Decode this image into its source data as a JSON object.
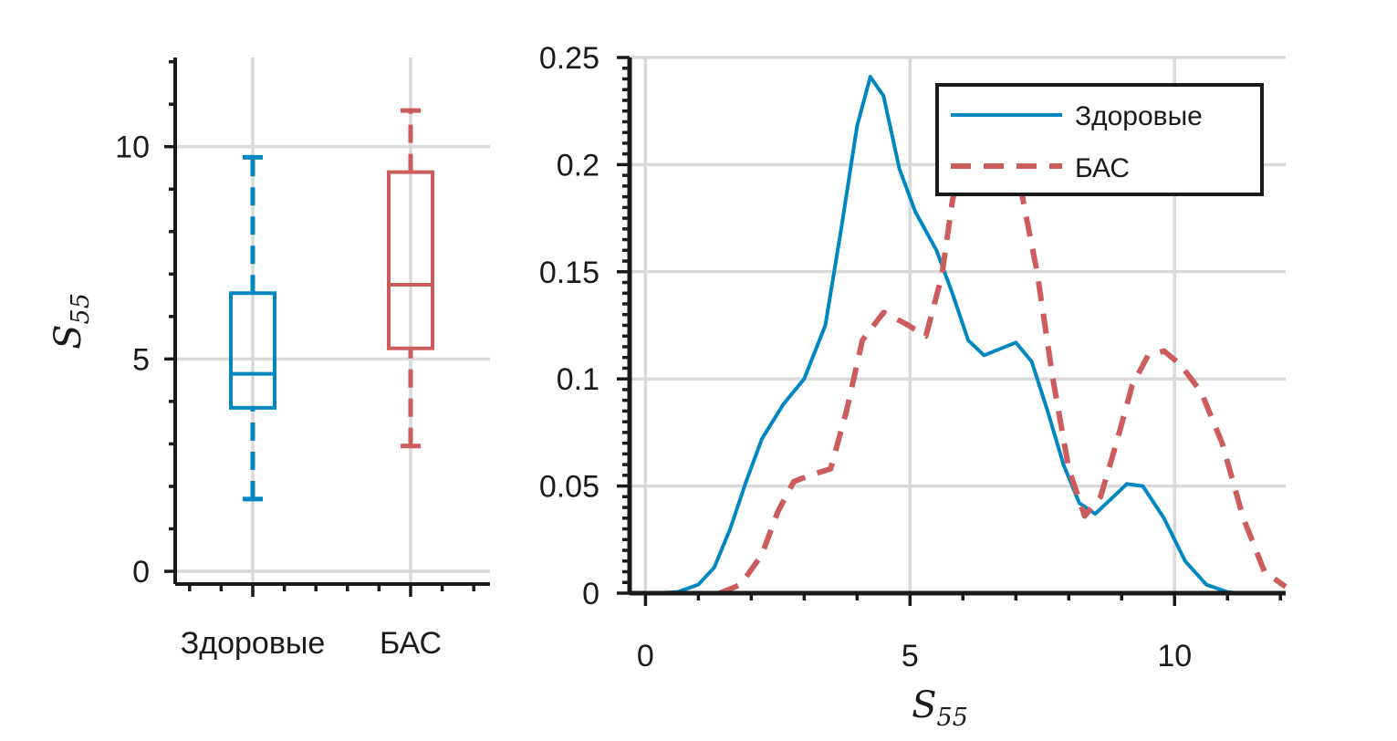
{
  "colors": {
    "healthy": "#0087c2",
    "als": "#cd5c5c",
    "grid": "#d9d9d9",
    "axis": "#1a1a1a"
  },
  "chart_data": [
    {
      "type": "box",
      "categories": [
        "Здоровые",
        "БАС"
      ],
      "ylabel": "S",
      "ylabel_sub": "55",
      "ylim": [
        -0.3,
        12.1
      ],
      "yticks": [
        0,
        5,
        10
      ],
      "ytick_labels": [
        "0",
        "5",
        "10"
      ],
      "grid": true,
      "boxes": [
        {
          "name": "Здоровые",
          "whisker_low": 1.7,
          "q1": 3.85,
          "median": 4.65,
          "q3": 6.55,
          "whisker_high": 9.75
        },
        {
          "name": "БАС",
          "whisker_low": 2.95,
          "q1": 5.25,
          "median": 6.75,
          "q3": 9.4,
          "whisker_high": 10.85
        }
      ]
    },
    {
      "type": "line",
      "xlabel": "S",
      "xlabel_sub": "55",
      "xlim": [
        -0.3,
        12.1
      ],
      "ylim": [
        0,
        0.25
      ],
      "xticks": [
        0,
        5,
        10
      ],
      "xtick_labels": [
        "0",
        "5",
        "10"
      ],
      "yticks": [
        0,
        0.05,
        0.1,
        0.15,
        0.2,
        0.25
      ],
      "ytick_labels": [
        "0",
        "0.05",
        "0.1",
        "0.15",
        "0.2",
        "0.25"
      ],
      "grid": true,
      "legend": "top-right",
      "series": [
        {
          "name": "Здоровые",
          "style": "solid",
          "points": [
            [
              0.2,
              0
            ],
            [
              0.6,
              0.0005
            ],
            [
              1.0,
              0.004
            ],
            [
              1.3,
              0.012
            ],
            [
              1.6,
              0.03
            ],
            [
              1.9,
              0.052
            ],
            [
              2.2,
              0.072
            ],
            [
              2.6,
              0.088
            ],
            [
              3.0,
              0.1
            ],
            [
              3.4,
              0.125
            ],
            [
              3.7,
              0.17
            ],
            [
              4.0,
              0.218
            ],
            [
              4.25,
              0.241
            ],
            [
              4.5,
              0.232
            ],
            [
              4.8,
              0.198
            ],
            [
              5.1,
              0.178
            ],
            [
              5.5,
              0.16
            ],
            [
              5.8,
              0.14
            ],
            [
              6.1,
              0.118
            ],
            [
              6.4,
              0.111
            ],
            [
              6.7,
              0.114
            ],
            [
              7.0,
              0.117
            ],
            [
              7.3,
              0.108
            ],
            [
              7.6,
              0.085
            ],
            [
              7.9,
              0.06
            ],
            [
              8.2,
              0.042
            ],
            [
              8.5,
              0.037
            ],
            [
              8.8,
              0.044
            ],
            [
              9.1,
              0.051
            ],
            [
              9.4,
              0.05
            ],
            [
              9.8,
              0.035
            ],
            [
              10.2,
              0.015
            ],
            [
              10.6,
              0.004
            ],
            [
              11.0,
              0.0005
            ],
            [
              11.2,
              0
            ]
          ]
        },
        {
          "name": "БАС",
          "style": "dashed",
          "points": [
            [
              1.4,
              0
            ],
            [
              1.8,
              0.004
            ],
            [
              2.2,
              0.018
            ],
            [
              2.5,
              0.038
            ],
            [
              2.8,
              0.052
            ],
            [
              3.1,
              0.055
            ],
            [
              3.5,
              0.058
            ],
            [
              3.8,
              0.085
            ],
            [
              4.1,
              0.118
            ],
            [
              4.5,
              0.131
            ],
            [
              4.9,
              0.126
            ],
            [
              5.3,
              0.12
            ],
            [
              5.6,
              0.148
            ],
            [
              5.8,
              0.183
            ],
            [
              6.0,
              0.205
            ],
            [
              6.3,
              0.208
            ],
            [
              6.7,
              0.206
            ],
            [
              7.1,
              0.188
            ],
            [
              7.4,
              0.15
            ],
            [
              7.7,
              0.1
            ],
            [
              8.0,
              0.058
            ],
            [
              8.3,
              0.036
            ],
            [
              8.6,
              0.045
            ],
            [
              8.9,
              0.07
            ],
            [
              9.2,
              0.097
            ],
            [
              9.5,
              0.111
            ],
            [
              9.8,
              0.113
            ],
            [
              10.1,
              0.107
            ],
            [
              10.5,
              0.094
            ],
            [
              10.9,
              0.07
            ],
            [
              11.3,
              0.035
            ],
            [
              11.7,
              0.01
            ],
            [
              12.1,
              0.003
            ]
          ]
        }
      ]
    }
  ]
}
